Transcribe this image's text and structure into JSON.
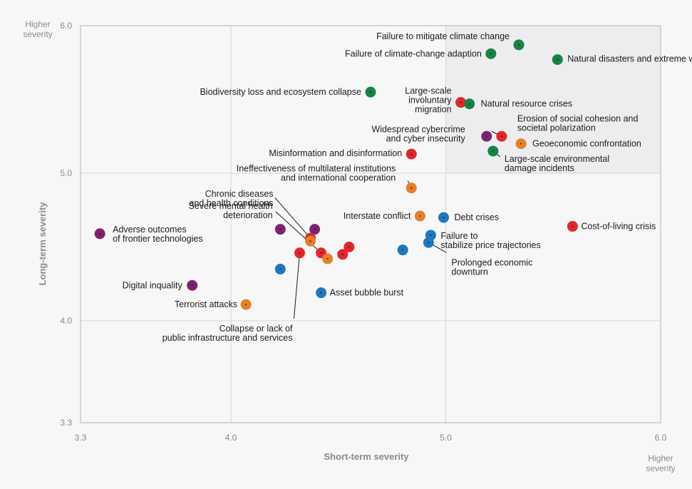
{
  "corner_labels": {
    "top_left": "Higher severity",
    "bottom_right": "Higher severity"
  },
  "colors": {
    "environmental": "#158444",
    "societal": "#e3262c",
    "technological": "#7e2270",
    "geopolitical": "#e77f24",
    "economic": "#1c78bf",
    "highlight": "#ededef",
    "grid": "#d4d4d4",
    "frame": "#b3b3b3"
  },
  "chart_data": {
    "type": "scatter",
    "xlabel": "Short-term severity",
    "ylabel": "Long-term severity",
    "xlim": [
      3.3,
      6.0
    ],
    "ylim": [
      3.3,
      6.0
    ],
    "x_ticks": [
      "3.3",
      "4.0",
      "5.0",
      "6.0"
    ],
    "y_ticks": [
      "3.3",
      "4.0",
      "5.0",
      "6.0"
    ],
    "highlight_region": {
      "x": [
        5.0,
        6.0
      ],
      "y": [
        5.0,
        6.0
      ]
    },
    "grid": true,
    "points": [
      {
        "label": "Failure to mitigate climate change",
        "category": "environmental",
        "x": 5.34,
        "y": 5.87
      },
      {
        "label": "Failure of climate-change adaption",
        "category": "environmental",
        "x": 5.21,
        "y": 5.81
      },
      {
        "label": "Natural disasters and extreme weather",
        "category": "environmental",
        "x": 5.52,
        "y": 5.77
      },
      {
        "label": "Biodiversity loss and ecosystem collapse",
        "category": "environmental",
        "x": 4.65,
        "y": 5.55
      },
      {
        "label": "Large-scale involuntary migration",
        "category": "societal",
        "x": 5.07,
        "y": 5.48
      },
      {
        "label": "Natural resource crises",
        "category": "environmental",
        "x": 5.11,
        "y": 5.47
      },
      {
        "label": "Erosion of social cohesion and societal polarization",
        "category": "societal",
        "x": 5.26,
        "y": 5.25
      },
      {
        "label": "Widespread cybercrime and cyber insecurity",
        "category": "technological",
        "x": 5.19,
        "y": 5.25
      },
      {
        "label": "Geoeconomic confrontation",
        "category": "geopolitical",
        "x": 5.35,
        "y": 5.2
      },
      {
        "label": "Large-scale environmental damage incidents",
        "category": "environmental",
        "x": 5.22,
        "y": 5.15
      },
      {
        "label": "Misinformation and disinformation",
        "category": "societal",
        "x": 4.84,
        "y": 5.13
      },
      {
        "label": "Ineffectiveness of multilateral institutions and international cooperation",
        "category": "geopolitical",
        "x": 4.84,
        "y": 4.9
      },
      {
        "label": "Interstate conflict",
        "category": "geopolitical",
        "x": 4.88,
        "y": 4.71
      },
      {
        "label": "Debt crises",
        "category": "economic",
        "x": 4.99,
        "y": 4.7
      },
      {
        "label": "Cost-of-living crisis",
        "category": "societal",
        "x": 5.59,
        "y": 4.64
      },
      {
        "label": "Failure to stabilize price trajectories",
        "category": "economic",
        "x": 4.93,
        "y": 4.58
      },
      {
        "label": "Prolonged economic downturn",
        "category": "economic",
        "x": 4.92,
        "y": 4.53
      },
      {
        "label": "",
        "category": "economic",
        "x": 4.8,
        "y": 4.48
      },
      {
        "label": "Adverse outcomes of frontier technologies",
        "category": "technological",
        "x": 3.39,
        "y": 4.59
      },
      {
        "label": "",
        "category": "technological",
        "x": 4.23,
        "y": 4.62
      },
      {
        "label": "",
        "category": "technological",
        "x": 4.39,
        "y": 4.62
      },
      {
        "label": "Chronic diseases and health conditions",
        "category": "societal",
        "x": 4.37,
        "y": 4.56
      },
      {
        "label": "",
        "category": "geopolitical",
        "x": 4.37,
        "y": 4.54
      },
      {
        "label": "Severe mental health deterioration",
        "category": "societal",
        "x": 4.42,
        "y": 4.46
      },
      {
        "label": "",
        "category": "societal",
        "x": 4.52,
        "y": 4.45
      },
      {
        "label": "",
        "category": "societal",
        "x": 4.55,
        "y": 4.5
      },
      {
        "label": "",
        "category": "geopolitical",
        "x": 4.45,
        "y": 4.42
      },
      {
        "label": "Collapse or lack of public infrastructure and services",
        "category": "societal",
        "x": 4.32,
        "y": 4.46
      },
      {
        "label": "",
        "category": "economic",
        "x": 4.23,
        "y": 4.35
      },
      {
        "label": "Asset bubble burst",
        "category": "economic",
        "x": 4.42,
        "y": 4.19
      },
      {
        "label": "Digital inquality",
        "category": "technological",
        "x": 3.82,
        "y": 4.24
      },
      {
        "label": "Terrorist attacks",
        "category": "geopolitical",
        "x": 4.07,
        "y": 4.11
      }
    ]
  }
}
